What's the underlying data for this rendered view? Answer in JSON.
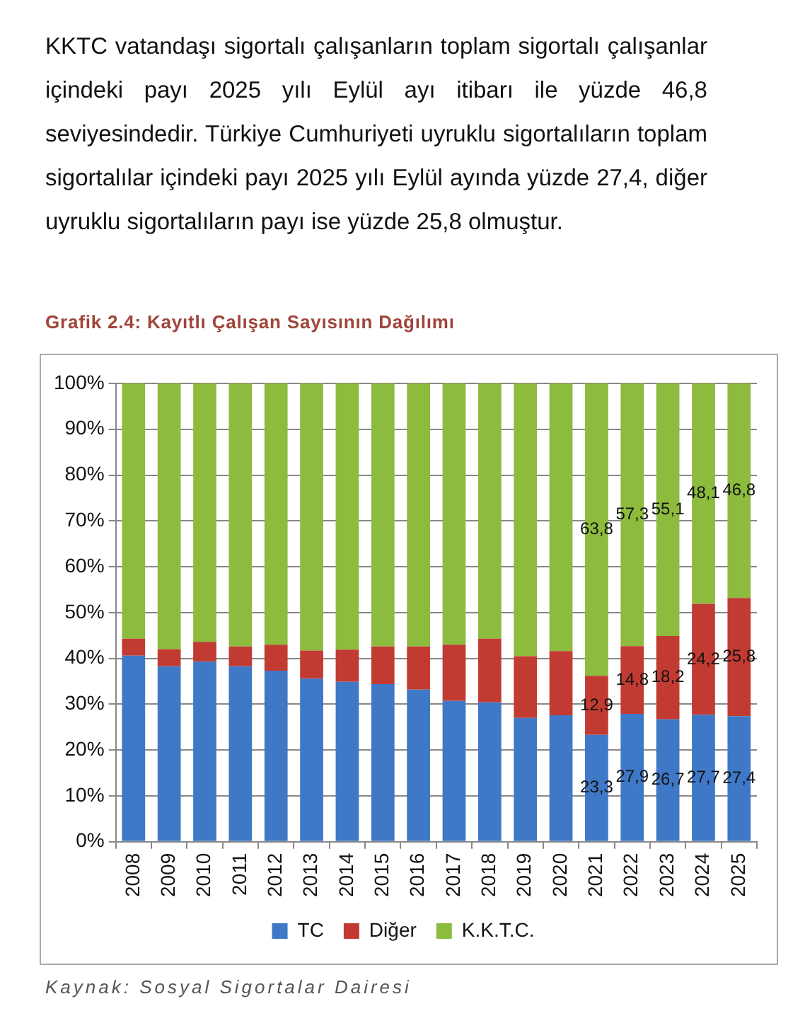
{
  "chart_data": {
    "type": "bar",
    "stacked": true,
    "title": "Grafik 2.4: Kayıtlı Çalışan Sayısının Dağılımı",
    "annotations": [
      "KKTC vatandaşı sigortalı çalışanların toplam sigortalı çalışanlar içindeki payı 2025 yılı Eylül ayı itibarı ile yüzde 46,8 seviyesindedir. Türkiye Cumhuriyeti uyruklu sigortalıların toplam sigortalılar içindeki payı 2025 yılı Eylül ayında yüzde 27,4, diğer uyruklu sigortalıların payı ise yüzde 25,8 olmuştur.",
      "Kaynak: Sosyal Sigortalar Dairesi"
    ],
    "categories": [
      "2008",
      "2009",
      "2010",
      "2011",
      "2012",
      "2013",
      "2014",
      "2015",
      "2016",
      "2017",
      "2018",
      "2019",
      "2020",
      "2021",
      "2022",
      "2023",
      "2024",
      "2025"
    ],
    "series": [
      {
        "name": "TC",
        "color": "#3f78c6",
        "values": [
          40.6,
          38.3,
          39.3,
          38.3,
          37.3,
          35.6,
          34.9,
          34.4,
          33.2,
          30.7,
          30.4,
          27.0,
          27.6,
          23.3,
          27.9,
          26.7,
          27.7,
          27.4
        ],
        "value_labels": [
          null,
          null,
          null,
          null,
          null,
          null,
          null,
          null,
          null,
          null,
          null,
          null,
          null,
          "23,3",
          "27,9",
          "26,7",
          "27,7",
          "27,4"
        ]
      },
      {
        "name": "Diğer",
        "color": "#c23b32",
        "values": [
          3.7,
          3.7,
          4.3,
          4.3,
          5.7,
          6.1,
          7.0,
          8.2,
          9.4,
          12.3,
          13.9,
          13.5,
          14.0,
          12.9,
          14.8,
          18.2,
          24.2,
          25.8
        ],
        "value_labels": [
          null,
          null,
          null,
          null,
          null,
          null,
          null,
          null,
          null,
          null,
          null,
          null,
          null,
          "12,9",
          "14,8",
          "18,2",
          "24,2",
          "25,8"
        ]
      },
      {
        "name": "K.K.T.C.",
        "color": "#8dbb3e",
        "values": [
          55.7,
          58.0,
          56.4,
          57.4,
          57.0,
          58.3,
          58.1,
          57.4,
          57.4,
          57.0,
          55.7,
          59.5,
          58.4,
          63.8,
          57.3,
          55.1,
          48.1,
          46.8
        ],
        "value_labels": [
          null,
          null,
          null,
          null,
          null,
          null,
          null,
          null,
          null,
          null,
          null,
          null,
          null,
          "63,8",
          "57,3",
          "55,1",
          "48,1",
          "46,8"
        ]
      }
    ],
    "ylim": [
      0,
      100
    ],
    "yticks": [
      {
        "value": 0,
        "label": "0%"
      },
      {
        "value": 10,
        "label": "10%"
      },
      {
        "value": 20,
        "label": "20%"
      },
      {
        "value": 30,
        "label": "30%"
      },
      {
        "value": 40,
        "label": "40%"
      },
      {
        "value": 50,
        "label": "50%"
      },
      {
        "value": 60,
        "label": "60%"
      },
      {
        "value": 70,
        "label": "70%"
      },
      {
        "value": 80,
        "label": "80%"
      },
      {
        "value": 90,
        "label": "90%"
      },
      {
        "value": 100,
        "label": "100%"
      }
    ],
    "grid": "y",
    "legend": "bottom"
  }
}
